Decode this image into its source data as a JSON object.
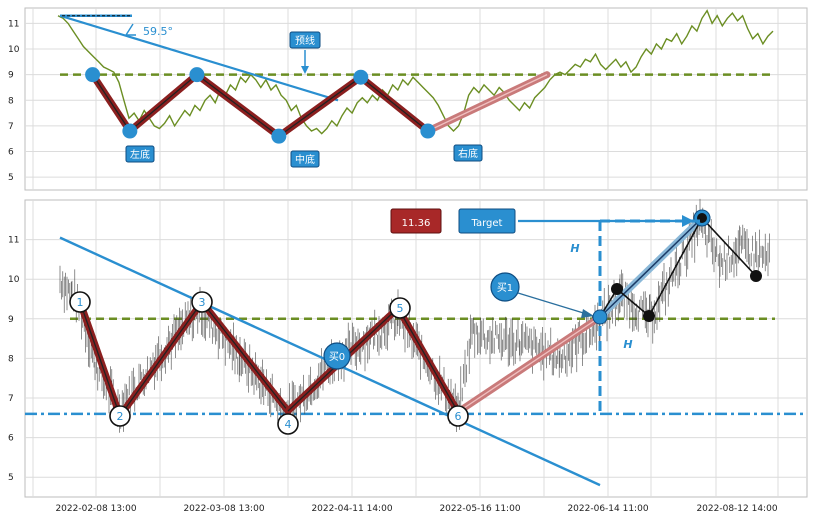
{
  "chart_data": [
    {
      "type": "line",
      "name": "top-panel",
      "ylim": [
        4.5,
        11.6
      ],
      "yticks": [
        5,
        6,
        7,
        8,
        9,
        10,
        11
      ],
      "series": [
        {
          "kind": "price",
          "color": "#6b8e23",
          "values": [
            11.3,
            11.2,
            11.0,
            10.7,
            10.4,
            10.1,
            9.9,
            9.7,
            9.5,
            9.3,
            9.2,
            9.1,
            8.7,
            8.0,
            7.3,
            7.5,
            7.2,
            7.6,
            7.3,
            7.0,
            6.9,
            7.1,
            7.4,
            7.0,
            7.3,
            7.6,
            7.4,
            7.8,
            7.6,
            8.0,
            8.2,
            7.9,
            8.4,
            8.2,
            8.6,
            8.4,
            8.9,
            8.7,
            9.0,
            8.8,
            8.5,
            8.8,
            8.4,
            8.6,
            8.2,
            8.0,
            7.6,
            7.8,
            7.3,
            7.0,
            6.8,
            6.9,
            6.7,
            6.9,
            7.2,
            7.0,
            7.4,
            7.7,
            7.5,
            7.9,
            8.1,
            7.9,
            8.2,
            8.0,
            8.4,
            8.2,
            8.6,
            8.4,
            8.8,
            8.6,
            8.9,
            8.7,
            8.5,
            8.3,
            8.1,
            7.8,
            7.4,
            7.0,
            6.8,
            7.0,
            7.5,
            8.2,
            8.5,
            8.3,
            8.6,
            8.4,
            8.2,
            8.5,
            8.3,
            8.0,
            7.8,
            7.6,
            7.9,
            7.7,
            8.1,
            8.3,
            8.5,
            8.8,
            9.0,
            9.1,
            9.0,
            9.2,
            9.4,
            9.3,
            9.6,
            9.5,
            9.8,
            9.4,
            9.2,
            9.4,
            9.6,
            9.3,
            9.5,
            9.1,
            9.3,
            9.7,
            10.0,
            9.8,
            10.2,
            10.0,
            10.4,
            10.3,
            10.6,
            10.2,
            10.5,
            10.9,
            10.7,
            11.2,
            11.5,
            11.0,
            11.3,
            10.9,
            11.2,
            11.4,
            11.1,
            11.3,
            10.8,
            10.4,
            10.6,
            10.2,
            10.5,
            10.7
          ]
        },
        {
          "kind": "pattern",
          "label": "W-bottom",
          "points": [
            [
              0.08,
              9.0
            ],
            [
              0.13,
              6.8
            ],
            [
              0.22,
              9.0
            ],
            [
              0.33,
              6.6
            ],
            [
              0.44,
              8.9
            ],
            [
              0.53,
              6.8
            ],
            [
              0.69,
              9.0
            ]
          ]
        }
      ],
      "neckline": 9.0,
      "angle_label": "59.5°",
      "annotations": [
        "预线",
        "左底",
        "中底",
        "右底"
      ]
    },
    {
      "type": "line",
      "name": "bottom-panel",
      "xlabel_ticks": [
        "2022-02-08 13:00",
        "2022-03-08 13:00",
        "2022-04-11 14:00",
        "2022-05-16 11:00",
        "2022-06-14 11:00",
        "2022-08-12 14:00"
      ],
      "ylim": [
        4.5,
        12.0
      ],
      "yticks": [
        5,
        6,
        7,
        8,
        9,
        10,
        11
      ],
      "neckline": 9.0,
      "support": 6.6,
      "target_value": "11.36",
      "target_label": "Target",
      "height_label": "H",
      "buy_labels": [
        "买0",
        "买1"
      ],
      "pivot_labels": [
        "1",
        "2",
        "3",
        "4",
        "5",
        "6"
      ],
      "pivots": [
        [
          0.06,
          9.3
        ],
        [
          0.12,
          6.7
        ],
        [
          0.23,
          9.3
        ],
        [
          0.34,
          6.6
        ],
        [
          0.5,
          9.2
        ],
        [
          0.58,
          6.6
        ],
        [
          0.76,
          8.9
        ],
        [
          0.89,
          11.4
        ]
      ]
    }
  ]
}
